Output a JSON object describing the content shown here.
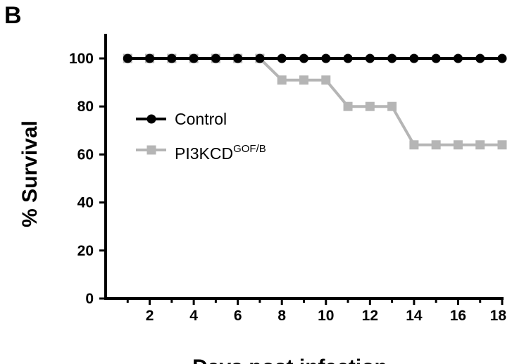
{
  "panel_label": "B",
  "chart_data": {
    "type": "line",
    "xlabel": "Days post infection",
    "ylabel": "% Survival",
    "xlim": [
      0,
      18
    ],
    "ylim": [
      0,
      110
    ],
    "xticks": [
      2,
      4,
      6,
      8,
      10,
      12,
      14,
      16,
      18
    ],
    "yticks": [
      0,
      20,
      40,
      60,
      80,
      100
    ],
    "grid": false,
    "legend_position": "middle-left",
    "series": [
      {
        "name": "Control",
        "marker": "circle",
        "color": "#000000",
        "x": [
          1,
          2,
          3,
          4,
          5,
          6,
          7,
          8,
          9,
          10,
          11,
          12,
          13,
          14,
          15,
          16,
          17,
          18
        ],
        "y": [
          100,
          100,
          100,
          100,
          100,
          100,
          100,
          100,
          100,
          100,
          100,
          100,
          100,
          100,
          100,
          100,
          100,
          100
        ]
      },
      {
        "name": "PI3KCD",
        "name_superscript": "GOF/B",
        "marker": "square",
        "color": "#b5b5b5",
        "x": [
          1,
          2,
          3,
          4,
          5,
          6,
          7,
          8,
          9,
          10,
          11,
          12,
          13,
          14,
          15,
          16,
          17,
          18
        ],
        "y": [
          100,
          100,
          100,
          100,
          100,
          100,
          100,
          91,
          91,
          91,
          80,
          80,
          80,
          64,
          64,
          64,
          64,
          64
        ]
      }
    ]
  }
}
